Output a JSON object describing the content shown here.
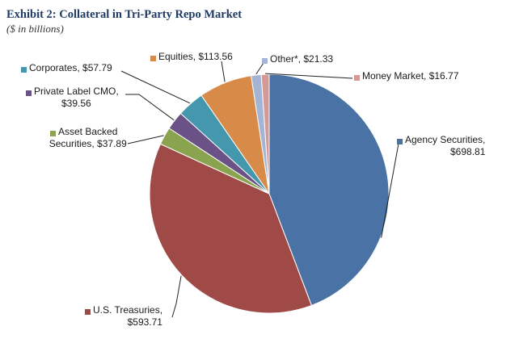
{
  "chart_data": {
    "type": "pie",
    "title": "Exhibit 2: Collateral in Tri-Party Repo Market",
    "subtitle": "($ in billions)",
    "legend": "none",
    "slices": [
      {
        "label": "Agency Securities",
        "value": 698.81,
        "value_text": "$698.81",
        "color": "#4a72a4"
      },
      {
        "label": "U.S. Treasuries",
        "value": 593.71,
        "value_text": "$593.71",
        "color": "#9f4a47"
      },
      {
        "label": "Asset Backed Securities",
        "label_lines": [
          "Asset Backed",
          "Securities, $37.89"
        ],
        "value": 37.89,
        "value_text": "$37.89",
        "color": "#8aa34f"
      },
      {
        "label": "Private Label CMO",
        "label_lines": [
          "Private Label CMO,",
          "$39.56"
        ],
        "value": 39.56,
        "value_text": "$39.56",
        "color": "#6a5286"
      },
      {
        "label": "Corporates",
        "value": 57.79,
        "value_text": "$57.79",
        "color": "#4497ad"
      },
      {
        "label": "Equities",
        "value": 113.56,
        "value_text": "$113.56",
        "color": "#d88a48"
      },
      {
        "label": "Other*",
        "value": 21.33,
        "value_text": "$21.33",
        "color": "#a4b4d4"
      },
      {
        "label": "Money Market",
        "value": 16.77,
        "value_text": "$16.77",
        "color": "#d49a98"
      }
    ],
    "colors": {
      "title": "#1f3b64",
      "subtitle": "#333333"
    }
  }
}
